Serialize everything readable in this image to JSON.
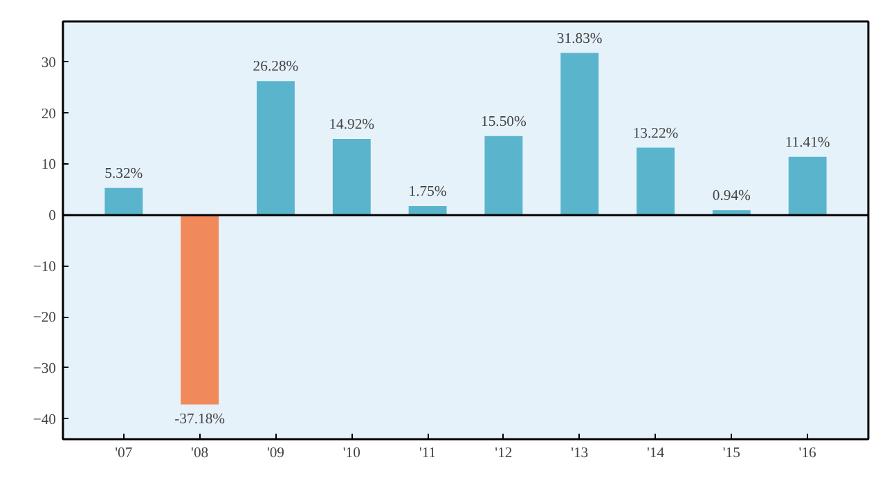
{
  "chart_data": {
    "type": "bar",
    "categories": [
      "'07",
      "'08",
      "'09",
      "'10",
      "'11",
      "'12",
      "'13",
      "'14",
      "'15",
      "'16"
    ],
    "values": [
      5.32,
      -37.18,
      26.28,
      14.92,
      1.75,
      15.5,
      31.83,
      13.22,
      0.94,
      11.41
    ],
    "colors": [
      "#5ab4cc",
      "#f08a5a",
      "#5ab4cc",
      "#5ab4cc",
      "#5ab4cc",
      "#5ab4cc",
      "#5ab4cc",
      "#5ab4cc",
      "#5ab4cc",
      "#5ab4cc"
    ],
    "value_labels": [
      "5.32%",
      "-37.18%",
      "26.28%",
      "14.92%",
      "1.75%",
      "15.50%",
      "31.83%",
      "13.22%",
      "0.94%",
      "11.41%"
    ],
    "ylim": [
      -44,
      38
    ],
    "yticks": [
      {
        "value": -40,
        "label": "−40"
      },
      {
        "value": -30,
        "label": "−30"
      },
      {
        "value": -20,
        "label": "−20"
      },
      {
        "value": -10,
        "label": "−10"
      },
      0,
      10,
      20,
      30
    ],
    "ref_lines": [
      {
        "axis": "y",
        "value": 0,
        "color": "#000000"
      }
    ],
    "grid": false
  }
}
